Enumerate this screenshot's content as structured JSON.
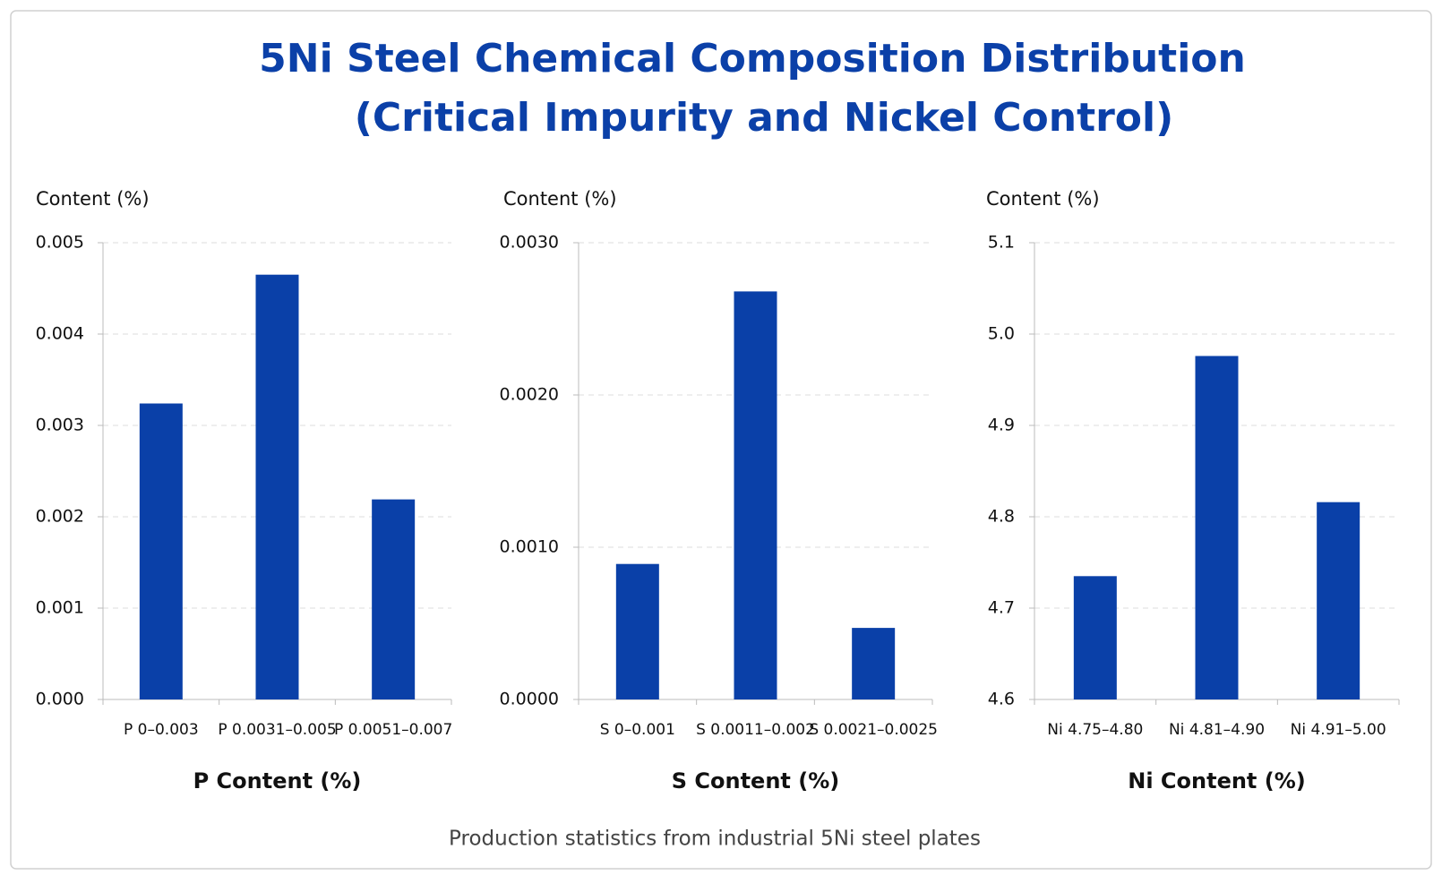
{
  "title": [
    "5Ni Steel Chemical Composition Distribution",
    "(Critical Impurity and Nickel Control)"
  ],
  "footnote": "Production statistics from industrial 5Ni steel plates",
  "chart_data": [
    {
      "type": "bar",
      "ylabel": "Content (%)",
      "xlabel": "P Content (%)",
      "categories": [
        "P 0–0.003",
        "P 0.0031–0.005",
        "P 0.0051–0.007"
      ],
      "values": [
        0.00324,
        0.00465,
        0.00219
      ],
      "color": "#0a40a8",
      "ylim": [
        0,
        0.005
      ],
      "yticks": [
        {
          "value": 0,
          "label": "0.000"
        },
        {
          "value": 0.001,
          "label": "0.001"
        },
        {
          "value": 0.002,
          "label": "0.002"
        },
        {
          "value": 0.003,
          "label": "0.003"
        },
        {
          "value": 0.004,
          "label": "0.004"
        },
        {
          "value": 0.005,
          "label": "0.005"
        }
      ],
      "grid": true
    },
    {
      "type": "bar",
      "ylabel": "Content (%)",
      "xlabel": "S Content (%)",
      "categories": [
        "S 0–0.001",
        "S 0.0011–0.002",
        "S 0.0021–0.0025"
      ],
      "values": [
        0.00089,
        0.00268,
        0.00047
      ],
      "color": "#0a40a8",
      "ylim": [
        0,
        0.003
      ],
      "yticks": [
        {
          "value": 0,
          "label": "0.0000"
        },
        {
          "value": 0.001,
          "label": "0.0010"
        },
        {
          "value": 0.002,
          "label": "0.0020"
        },
        {
          "value": 0.003,
          "label": "0.0030"
        }
      ],
      "grid": true
    },
    {
      "type": "bar",
      "ylabel": "Content (%)",
      "xlabel": "Ni Content (%)",
      "categories": [
        "Ni 4.75–4.80",
        "Ni 4.81–4.90",
        "Ni 4.91–5.00"
      ],
      "values": [
        4.735,
        4.976,
        4.816
      ],
      "color": "#0a40a8",
      "ylim": [
        4.6,
        5.1
      ],
      "yticks": [
        4.6,
        4.7,
        4.8,
        4.9,
        {
          "value": 5,
          "label": "5.0"
        },
        5.1
      ],
      "grid": true
    }
  ]
}
